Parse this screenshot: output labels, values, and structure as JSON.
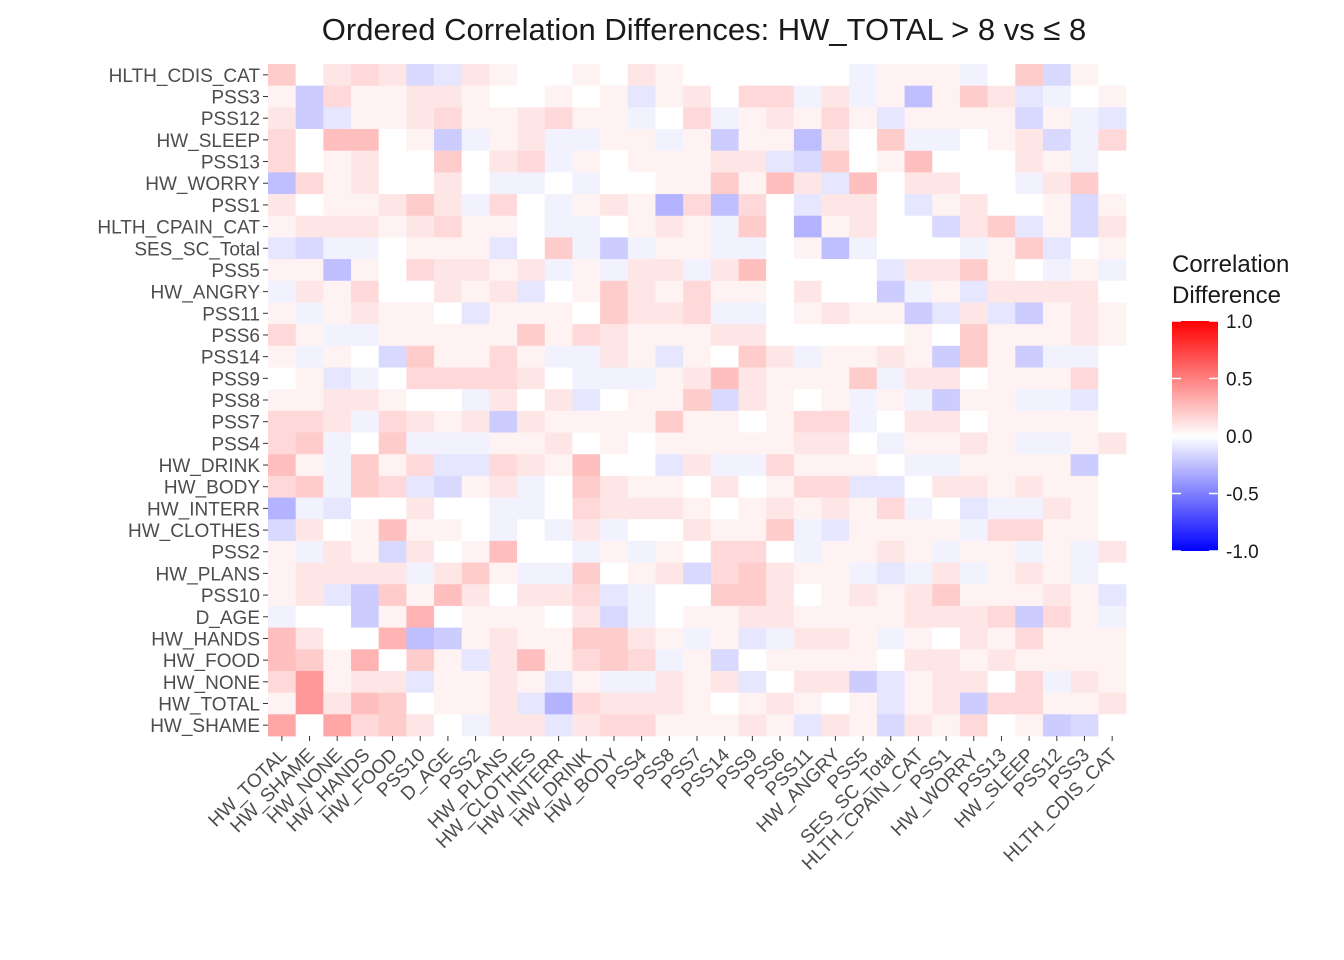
{
  "chart_data": {
    "type": "heatmap",
    "title": "Ordered Correlation Differences: HW_TOTAL > 8 vs ≤ 8",
    "xlabel": "",
    "ylabel": "",
    "x_categories": [
      "HW_TOTAL",
      "HW_SHAME",
      "HW_NONE",
      "HW_HANDS",
      "HW_FOOD",
      "PSS10",
      "D_AGE",
      "PSS2",
      "HW_PLANS",
      "HW_CLOTHES",
      "HW_INTERR",
      "HW_DRINK",
      "HW_BODY",
      "PSS4",
      "PSS8",
      "PSS7",
      "PSS14",
      "PSS9",
      "PSS6",
      "PSS11",
      "HW_ANGRY",
      "PSS5",
      "SES_SC_Total",
      "HLTH_CPAIN_CAT",
      "PSS1",
      "HW_WORRY",
      "PSS13",
      "HW_SLEEP",
      "PSS12",
      "PSS3",
      "HLTH_CDIS_CAT"
    ],
    "y_categories": [
      "HLTH_CDIS_CAT",
      "PSS3",
      "PSS12",
      "HW_SLEEP",
      "PSS13",
      "HW_WORRY",
      "PSS1",
      "HLTH_CPAIN_CAT",
      "SES_SC_Total",
      "PSS5",
      "HW_ANGRY",
      "PSS11",
      "PSS6",
      "PSS14",
      "PSS9",
      "PSS8",
      "PSS7",
      "PSS4",
      "HW_DRINK",
      "HW_BODY",
      "HW_INTERR",
      "HW_CLOTHES",
      "PSS2",
      "HW_PLANS",
      "PSS10",
      "D_AGE",
      "HW_HANDS",
      "HW_FOOD",
      "HW_NONE",
      "HW_TOTAL",
      "HW_SHAME"
    ],
    "legend": {
      "title_lines": [
        "Correlation",
        "Difference"
      ],
      "ticks": [
        1.0,
        0.5,
        0.0,
        -0.5,
        -1.0
      ],
      "tick_labels": [
        "1.0",
        "0.5",
        "0.0",
        "-0.5",
        "-1.0"
      ],
      "low_color": "#0000ff",
      "mid_color": "#ffffff",
      "high_color": "#ff0000",
      "placement": "right"
    },
    "value_range": [
      -1,
      1
    ],
    "grid": true,
    "values": [
      [
        0.2,
        0,
        0.1,
        0.15,
        0.1,
        -0.15,
        -0.1,
        0.1,
        0.05,
        0,
        0,
        0.05,
        0,
        0.1,
        0.05,
        0,
        0,
        0,
        0,
        0,
        0,
        -0.05,
        0.05,
        0.05,
        0.05,
        -0.05,
        0,
        0.2,
        -0.15,
        0.05,
        0
      ],
      [
        0.05,
        -0.2,
        0.15,
        0.05,
        0.05,
        0.1,
        0.1,
        0.05,
        0,
        0,
        0.05,
        0,
        0.05,
        -0.1,
        0.05,
        0.1,
        0,
        0.15,
        0.15,
        -0.05,
        0.1,
        -0.05,
        0.05,
        -0.25,
        0.05,
        0.2,
        0.1,
        -0.1,
        -0.05,
        0,
        0.05
      ],
      [
        0.1,
        -0.2,
        -0.1,
        0.05,
        0.05,
        0.1,
        0.15,
        0.05,
        0.05,
        0.1,
        0.15,
        0.05,
        0.05,
        -0.05,
        0,
        0.15,
        -0.05,
        0.05,
        0.1,
        0.05,
        0.15,
        0.05,
        -0.1,
        0.05,
        0.05,
        0.05,
        0.05,
        -0.15,
        0.05,
        -0.05,
        -0.1
      ],
      [
        0.15,
        0,
        0.25,
        0.25,
        0,
        0.05,
        -0.2,
        -0.05,
        0.05,
        0.1,
        -0.05,
        -0.05,
        0.05,
        0.05,
        -0.05,
        0.05,
        -0.2,
        0.05,
        0.05,
        -0.25,
        0.1,
        0,
        0.2,
        -0.05,
        -0.05,
        0,
        0.05,
        0.1,
        -0.15,
        -0.05,
        0.15
      ],
      [
        0.15,
        0,
        0.05,
        0.1,
        0,
        0,
        0.2,
        0,
        0.1,
        0.15,
        -0.05,
        0.05,
        0,
        0.05,
        0.05,
        0.05,
        0.1,
        0.1,
        -0.1,
        -0.15,
        0.2,
        0,
        0.05,
        0.25,
        0,
        0,
        0,
        0.1,
        0.05,
        -0.05,
        0
      ],
      [
        -0.25,
        0.15,
        0.05,
        0.1,
        0,
        0,
        0.1,
        0,
        -0.05,
        -0.05,
        0,
        -0.05,
        0,
        0,
        0.05,
        0.05,
        0.2,
        0.05,
        0.25,
        0.1,
        -0.1,
        0.25,
        0,
        0.1,
        0.1,
        0,
        0,
        -0.05,
        0.1,
        0.2,
        0
      ],
      [
        0.1,
        0,
        0.05,
        0.05,
        0.1,
        0.2,
        0.1,
        -0.05,
        0.15,
        0,
        -0.05,
        0.05,
        0.1,
        0.05,
        -0.3,
        0.15,
        -0.25,
        0.15,
        0,
        -0.1,
        0.1,
        0.1,
        0,
        -0.1,
        0.05,
        0.1,
        0,
        0,
        0.05,
        -0.15,
        0.05
      ],
      [
        0.05,
        0.1,
        0.1,
        0.1,
        0.05,
        0.1,
        0.15,
        0.05,
        0.05,
        0,
        -0.05,
        -0.05,
        0,
        0.05,
        0.1,
        0.05,
        -0.05,
        0.2,
        0,
        -0.3,
        0.05,
        0.1,
        0,
        0,
        -0.15,
        0.1,
        0.2,
        -0.1,
        0.05,
        -0.15,
        0.1
      ],
      [
        -0.1,
        -0.15,
        -0.05,
        -0.05,
        0,
        0.05,
        0.05,
        0.05,
        -0.1,
        0,
        0.2,
        -0.05,
        -0.2,
        -0.05,
        0.05,
        0.05,
        -0.05,
        -0.05,
        0,
        0.05,
        -0.25,
        -0.05,
        0,
        0,
        0,
        -0.05,
        0.05,
        0.2,
        -0.1,
        0,
        0.05
      ],
      [
        0.05,
        0.05,
        -0.25,
        0.05,
        0,
        0.15,
        0.1,
        0.1,
        0.05,
        0.1,
        -0.05,
        0.05,
        -0.05,
        0.1,
        0.1,
        -0.05,
        0.1,
        0.25,
        0,
        0,
        0,
        0,
        -0.1,
        0.1,
        0.1,
        0.2,
        0.05,
        0,
        -0.05,
        0.05,
        -0.05
      ],
      [
        -0.05,
        0.1,
        0.05,
        0.15,
        0,
        0,
        0.1,
        0.05,
        0.1,
        -0.1,
        0,
        0.05,
        0.2,
        0.1,
        0.05,
        0.15,
        0.05,
        0.05,
        0,
        0.1,
        0,
        0,
        -0.2,
        -0.05,
        0.05,
        -0.1,
        0.1,
        0.1,
        0.1,
        0.1,
        0
      ],
      [
        0.05,
        -0.05,
        0.05,
        0.1,
        0.05,
        0.05,
        0,
        -0.1,
        0.05,
        0.05,
        0.05,
        0,
        0.2,
        0.1,
        0.1,
        0.15,
        -0.05,
        -0.05,
        0,
        0.05,
        0.1,
        0.05,
        0.05,
        -0.2,
        -0.1,
        0.1,
        -0.1,
        -0.2,
        0.05,
        0.1,
        0.05
      ],
      [
        0.15,
        0.05,
        -0.05,
        -0.05,
        0.05,
        0.05,
        0.05,
        0.05,
        0.05,
        0.2,
        0.05,
        0.15,
        0.1,
        0.05,
        0.05,
        0.05,
        0.1,
        0.1,
        0,
        0,
        0,
        0,
        0,
        0.05,
        0,
        0.2,
        0.05,
        0.05,
        0.05,
        0.1,
        0.05
      ],
      [
        0.05,
        -0.05,
        0.05,
        0,
        -0.15,
        0.2,
        0.05,
        0.05,
        0.15,
        0.05,
        -0.05,
        -0.05,
        0.1,
        0.05,
        -0.1,
        0.05,
        0,
        0.2,
        0.1,
        -0.05,
        0.05,
        0.05,
        0.1,
        0.05,
        -0.2,
        0.2,
        0.05,
        -0.2,
        -0.05,
        -0.05,
        0
      ],
      [
        0,
        0.05,
        -0.1,
        -0.05,
        0,
        0.15,
        0.15,
        0.15,
        0.15,
        0.1,
        0,
        -0.05,
        -0.05,
        -0.05,
        0.05,
        0.1,
        0.25,
        0.1,
        0.05,
        0.05,
        0.05,
        0.2,
        -0.05,
        0.1,
        0.1,
        0,
        0.05,
        0.05,
        0.05,
        0.15,
        0
      ],
      [
        0.05,
        0.05,
        0.1,
        0.1,
        0.05,
        0,
        0,
        -0.05,
        0.1,
        0,
        0.1,
        -0.1,
        0,
        0.05,
        0.05,
        0.2,
        -0.15,
        0.1,
        0.05,
        0,
        0.05,
        -0.05,
        0.05,
        -0.05,
        -0.2,
        0.05,
        0.05,
        -0.05,
        -0.05,
        -0.1,
        0
      ],
      [
        0.15,
        0.15,
        0.1,
        -0.05,
        0.15,
        0.1,
        0.05,
        0.1,
        -0.2,
        0.1,
        0.05,
        0.05,
        0.05,
        0.05,
        0.2,
        0.05,
        0.05,
        0,
        0.05,
        0.15,
        0.15,
        -0.05,
        0,
        0.1,
        0.1,
        0,
        0.05,
        0.05,
        0.05,
        0.05,
        0
      ],
      [
        0.15,
        0.2,
        -0.05,
        0,
        0.2,
        -0.05,
        -0.05,
        -0.05,
        0.05,
        0.05,
        0.1,
        0,
        0.05,
        0,
        0.05,
        0.05,
        0.05,
        0.05,
        0.05,
        0.1,
        0.1,
        0,
        -0.05,
        0.05,
        0.05,
        0.1,
        0.05,
        -0.05,
        -0.05,
        0.05,
        0.1
      ],
      [
        0.25,
        0.05,
        -0.05,
        0.2,
        0.05,
        0.15,
        -0.1,
        -0.1,
        0.15,
        0.1,
        0.05,
        0.25,
        0,
        0,
        -0.1,
        0.1,
        -0.05,
        -0.05,
        0.15,
        0.05,
        0.05,
        0.05,
        0,
        -0.05,
        -0.05,
        0.05,
        0.05,
        0.05,
        0.05,
        -0.2,
        0
      ],
      [
        0.15,
        0.2,
        -0.05,
        0.2,
        0.15,
        -0.1,
        -0.15,
        0.05,
        0.1,
        -0.05,
        0,
        0.2,
        0.1,
        0.05,
        0.05,
        0,
        0.1,
        0,
        0.05,
        0.15,
        0.15,
        -0.1,
        -0.1,
        0,
        0.1,
        0.1,
        0.05,
        0.1,
        0.05,
        0.05,
        0
      ],
      [
        -0.3,
        -0.05,
        -0.1,
        0,
        0,
        0.1,
        0,
        0,
        -0.05,
        -0.05,
        0,
        0.15,
        0.1,
        0.1,
        0.1,
        0.05,
        0,
        0.05,
        0.1,
        0.05,
        0.1,
        0.05,
        0.15,
        -0.05,
        0,
        -0.1,
        -0.05,
        -0.05,
        0.1,
        0.05,
        0
      ],
      [
        -0.15,
        0.1,
        0,
        0.05,
        0.25,
        0.05,
        0.05,
        0,
        -0.05,
        0,
        -0.05,
        0.1,
        -0.05,
        0,
        0,
        0.1,
        0.05,
        0.05,
        0.2,
        -0.05,
        -0.1,
        0.05,
        0.05,
        0.05,
        0.05,
        -0.05,
        0.15,
        0.15,
        0.05,
        0.05,
        0
      ],
      [
        0.05,
        -0.05,
        0.1,
        0.05,
        -0.15,
        0.1,
        0,
        0.05,
        0.25,
        0,
        0,
        -0.05,
        0.05,
        -0.05,
        0.05,
        0,
        0.15,
        0.15,
        0,
        -0.05,
        0.05,
        0.05,
        0.1,
        0.05,
        -0.05,
        0.05,
        0.05,
        -0.05,
        0.05,
        -0.05,
        0.1
      ],
      [
        0.05,
        0.1,
        0.1,
        0.1,
        0.1,
        -0.05,
        0.1,
        0.2,
        0.05,
        -0.05,
        -0.05,
        0.2,
        0,
        0.05,
        0.1,
        -0.15,
        0.15,
        0.2,
        0.1,
        0.05,
        0.05,
        -0.05,
        -0.1,
        -0.05,
        0.1,
        -0.05,
        0.05,
        0.1,
        0.05,
        -0.05,
        0
      ],
      [
        0.05,
        0.1,
        -0.1,
        -0.2,
        0.2,
        0.05,
        0.25,
        0.1,
        0,
        0.1,
        0.1,
        0.15,
        -0.1,
        -0.05,
        0,
        0,
        0.2,
        0.2,
        0.1,
        0,
        0.05,
        0.1,
        0.05,
        0.1,
        0.2,
        0.05,
        0.05,
        0.05,
        0.1,
        0.05,
        -0.1
      ],
      [
        -0.05,
        0,
        0,
        -0.2,
        0.05,
        0.3,
        0,
        0.05,
        0.05,
        0.05,
        0,
        0.1,
        -0.15,
        -0.05,
        0,
        0.05,
        0.05,
        0.1,
        0.1,
        0.05,
        0.05,
        0.05,
        0.05,
        0.1,
        0.1,
        0.1,
        0.15,
        -0.2,
        0.15,
        0.05,
        -0.05
      ],
      [
        0.25,
        0.1,
        0,
        0,
        0.3,
        -0.25,
        -0.2,
        0.05,
        0.1,
        0.05,
        0.05,
        0.2,
        0.2,
        0.1,
        0.05,
        -0.05,
        0.05,
        -0.1,
        -0.05,
        0.1,
        0.1,
        0.05,
        -0.05,
        0.05,
        0,
        0.1,
        0.05,
        0.15,
        0.05,
        0.05,
        0.05
      ],
      [
        0.25,
        0.2,
        0.05,
        0.3,
        0,
        0.2,
        0.05,
        -0.1,
        0.1,
        0.25,
        0.05,
        0.15,
        0.2,
        0.15,
        -0.05,
        0.05,
        -0.15,
        0,
        0.05,
        0.05,
        0.05,
        0.05,
        0,
        0.1,
        0.1,
        0.05,
        0.1,
        0.05,
        0.05,
        0.05,
        0.05
      ],
      [
        0.15,
        0.4,
        0.05,
        0.1,
        0.1,
        -0.1,
        0.05,
        0.05,
        0.1,
        0.05,
        -0.1,
        0.05,
        -0.05,
        -0.05,
        0.1,
        0.05,
        0.1,
        -0.1,
        0,
        0.1,
        0.1,
        -0.2,
        -0.1,
        0.05,
        0.1,
        0.1,
        0,
        0.15,
        -0.05,
        0.1,
        0.05
      ],
      [
        0.05,
        0.4,
        0.1,
        0.25,
        0.2,
        0,
        0.05,
        0.05,
        0.1,
        -0.1,
        -0.3,
        0.15,
        0.1,
        0.1,
        0.1,
        0.05,
        0,
        0.05,
        0.1,
        0.05,
        0,
        0.05,
        -0.1,
        0.05,
        0.1,
        -0.2,
        0.15,
        0.15,
        0.05,
        0.05,
        0.1
      ],
      [
        0.35,
        0,
        0.35,
        0.15,
        0.2,
        0.1,
        0,
        -0.05,
        0.1,
        0.1,
        -0.1,
        0.1,
        0.15,
        0.15,
        0.05,
        0.05,
        0.05,
        0.1,
        0.05,
        -0.1,
        0.1,
        0.05,
        -0.15,
        0.1,
        0.05,
        0.15,
        0,
        0.05,
        -0.2,
        -0.15,
        0
      ]
    ]
  }
}
